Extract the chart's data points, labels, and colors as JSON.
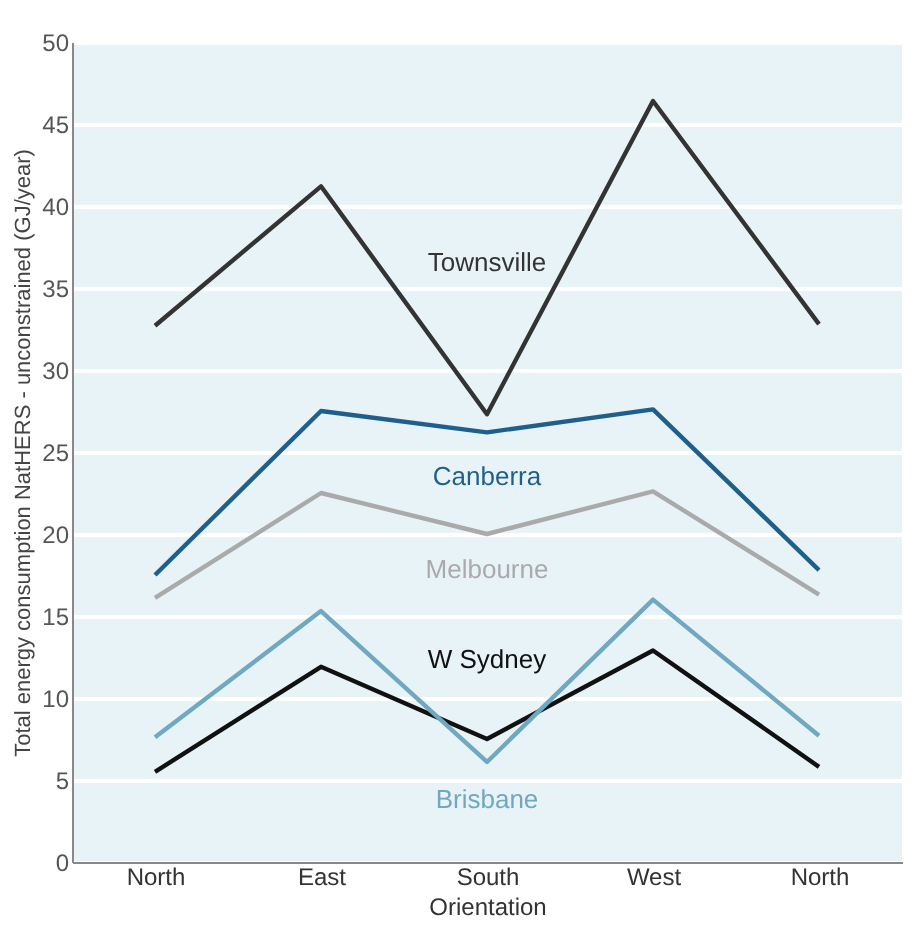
{
  "chart_data": {
    "type": "line",
    "xlabel": "Orientation",
    "ylabel": "Total energy consumption NatHERS - unconstrained (GJ/year)",
    "categories": [
      "North",
      "East",
      "South",
      "West",
      "North"
    ],
    "series": [
      {
        "name": "Townsville",
        "color": "#333333",
        "values": [
          32.7,
          41.2,
          27.3,
          46.4,
          32.8
        ]
      },
      {
        "name": "Canberra",
        "color": "#1f5f8b",
        "values": [
          17.5,
          27.5,
          26.2,
          27.6,
          17.8
        ]
      },
      {
        "name": "Melbourne",
        "color": "#aaaaaa",
        "values": [
          16.1,
          22.5,
          20.0,
          22.6,
          16.3
        ]
      },
      {
        "name": "W Sydney",
        "color": "#111111",
        "values": [
          5.5,
          11.9,
          7.5,
          12.9,
          5.8
        ]
      },
      {
        "name": "Brisbane",
        "color": "#6fa8c0",
        "values": [
          7.6,
          15.3,
          6.1,
          16.0,
          7.7
        ]
      }
    ],
    "ylim": [
      0,
      50
    ],
    "yticks": [
      0,
      5,
      10,
      15,
      20,
      25,
      30,
      35,
      40,
      45,
      50
    ],
    "grid": "y",
    "legend": false,
    "marker": "none",
    "line_style": "solid"
  }
}
